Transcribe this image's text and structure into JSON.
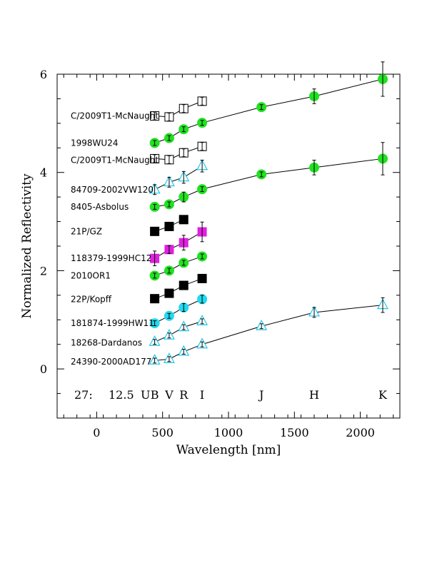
{
  "chart_data": {
    "type": "scatter",
    "title": "",
    "xlabel": "Wavelength [nm]",
    "ylabel": "Normalized Reflectivity",
    "xlim": [
      -300,
      2300
    ],
    "ylim": [
      -1,
      6
    ],
    "x_ticks": [
      0,
      500,
      1000,
      1500,
      2000
    ],
    "y_ticks": [
      0,
      2,
      4,
      6
    ],
    "grid": false,
    "bottom_annotations": {
      "left": [
        "27:",
        "12.5"
      ],
      "bands": [
        {
          "name": "U",
          "x": 370
        },
        {
          "name": "B",
          "x": 440
        },
        {
          "name": "V",
          "x": 550
        },
        {
          "name": "R",
          "x": 660
        },
        {
          "name": "I",
          "x": 800
        },
        {
          "name": "J",
          "x": 1250
        },
        {
          "name": "H",
          "x": 1650
        },
        {
          "name": "K",
          "x": 2170
        }
      ]
    },
    "series": [
      {
        "name": "C/2009T1-McNaught",
        "marker": "open-square",
        "color": "#000000",
        "label_y": 5.15,
        "points": [
          [
            440,
            5.15,
            0.08
          ],
          [
            550,
            5.13,
            0.08
          ],
          [
            660,
            5.3,
            0.08
          ],
          [
            800,
            5.45,
            0.08
          ]
        ]
      },
      {
        "name": "1998WU24",
        "marker": "circle",
        "color": "#22e022",
        "label_y": 4.6,
        "points": [
          [
            440,
            4.6,
            0.05
          ],
          [
            550,
            4.7,
            0.05
          ],
          [
            660,
            4.88,
            0.05
          ],
          [
            800,
            5.01,
            0.05
          ],
          [
            1250,
            5.33,
            0.05
          ],
          [
            1650,
            5.55,
            0.15
          ],
          [
            2170,
            5.9,
            0.35
          ]
        ]
      },
      {
        "name": "C/2009T1-McNaught",
        "marker": "open-square",
        "color": "#000000",
        "label_y": 4.25,
        "points": [
          [
            440,
            4.28,
            0.08
          ],
          [
            550,
            4.26,
            0.08
          ],
          [
            660,
            4.4,
            0.08
          ],
          [
            800,
            4.53,
            0.08
          ]
        ]
      },
      {
        "name": "84709-2002VW120",
        "marker": "open-triangle",
        "color": "#22c8e6",
        "label_y": 3.65,
        "points": [
          [
            440,
            3.65,
            0.1
          ],
          [
            550,
            3.8,
            0.1
          ],
          [
            660,
            3.9,
            0.12
          ],
          [
            800,
            4.13,
            0.12
          ]
        ]
      },
      {
        "name": "8405-Asbolus",
        "marker": "circle",
        "color": "#22e022",
        "label_y": 3.3,
        "points": [
          [
            440,
            3.3,
            0.05
          ],
          [
            550,
            3.35,
            0.05
          ],
          [
            660,
            3.5,
            0.1
          ],
          [
            800,
            3.66,
            0.05
          ],
          [
            1250,
            3.96,
            0.05
          ],
          [
            1650,
            4.1,
            0.15
          ],
          [
            2170,
            4.28,
            0.33
          ]
        ]
      },
      {
        "name": "21P/GZ",
        "marker": "square",
        "color": "#000000",
        "label_y": 2.8,
        "points": [
          [
            440,
            2.8,
            0.05
          ],
          [
            550,
            2.9,
            0.05
          ],
          [
            660,
            3.04,
            0.05
          ]
        ]
      },
      {
        "name": "118379-1999HC12",
        "marker": "square",
        "color": "#e020e0",
        "label_y": 2.25,
        "points": [
          [
            440,
            2.25,
            0.15
          ],
          [
            550,
            2.43,
            0.08
          ],
          [
            660,
            2.57,
            0.15
          ],
          [
            800,
            2.79,
            0.2
          ]
        ]
      },
      {
        "name": "2010OR1",
        "marker": "circle",
        "color": "#22e022",
        "label_y": 1.9,
        "points": [
          [
            440,
            1.9,
            0.05
          ],
          [
            550,
            2.0,
            0.05
          ],
          [
            660,
            2.16,
            0.05
          ],
          [
            800,
            2.29,
            0.05
          ]
        ]
      },
      {
        "name": "22P/Kopff",
        "marker": "square",
        "color": "#000000",
        "label_y": 1.42,
        "points": [
          [
            440,
            1.43,
            0.05
          ],
          [
            550,
            1.54,
            0.05
          ],
          [
            660,
            1.7,
            0.05
          ],
          [
            800,
            1.84,
            0.05
          ]
        ]
      },
      {
        "name": "181874-1999HW11",
        "marker": "circle",
        "color": "#22d8ee",
        "label_y": 0.93,
        "points": [
          [
            440,
            0.93,
            0.05
          ],
          [
            550,
            1.08,
            0.05
          ],
          [
            660,
            1.25,
            0.08
          ],
          [
            800,
            1.42,
            0.08
          ]
        ]
      },
      {
        "name": "18268-Dardanos",
        "marker": "open-triangle",
        "color": "#22c8e6",
        "label_y": 0.53,
        "points": [
          [
            440,
            0.55,
            0.05
          ],
          [
            550,
            0.68,
            0.05
          ],
          [
            660,
            0.85,
            0.05
          ],
          [
            800,
            0.97,
            0.05
          ]
        ]
      },
      {
        "name": "24390-2000AD177",
        "marker": "open-triangle",
        "color": "#22c8e6",
        "label_y": 0.15,
        "points": [
          [
            440,
            0.17,
            0.05
          ],
          [
            550,
            0.2,
            0.05
          ],
          [
            660,
            0.35,
            0.05
          ],
          [
            800,
            0.5,
            0.05
          ],
          [
            1250,
            0.87,
            0.05
          ],
          [
            1650,
            1.15,
            0.1
          ],
          [
            2170,
            1.3,
            0.15
          ]
        ]
      }
    ]
  }
}
